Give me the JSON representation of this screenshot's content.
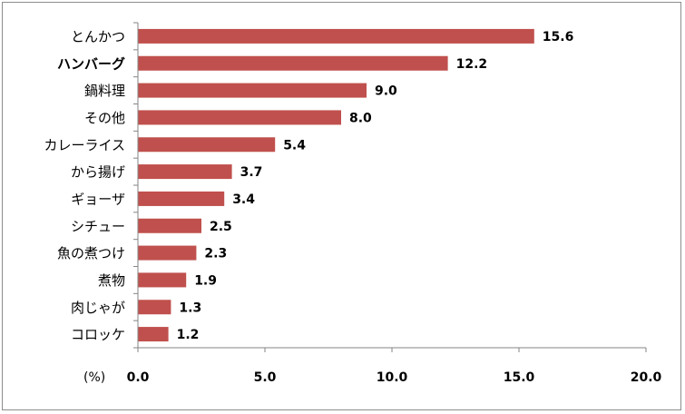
{
  "chart_data": {
    "type": "bar",
    "orientation": "horizontal",
    "categories": [
      "とんかつ",
      "ハンバーグ",
      "鍋料理",
      "その他",
      "カレーライス",
      "から揚げ",
      "ギョーザ",
      "シチュー",
      "魚の煮つけ",
      "煮物",
      "肉じゃが",
      "コロッケ"
    ],
    "values": [
      15.6,
      12.2,
      9.0,
      8.0,
      5.4,
      3.7,
      3.4,
      2.5,
      2.3,
      1.9,
      1.3,
      1.2
    ],
    "value_labels": [
      "15.6",
      "12.2",
      "9.0",
      "8.0",
      "5.4",
      "3.7",
      "3.4",
      "2.5",
      "2.3",
      "1.9",
      "1.3",
      "1.2"
    ],
    "bold_categories": [
      "ハンバーグ"
    ],
    "xlim": [
      0,
      20
    ],
    "x_ticks": [
      "0.0",
      "5.0",
      "10.0",
      "15.0",
      "20.0"
    ],
    "x_tick_values": [
      0,
      5,
      10,
      15,
      20
    ],
    "unit_label": "(%)",
    "bar_color": "#c0504d",
    "grid": false,
    "legend": "none"
  }
}
